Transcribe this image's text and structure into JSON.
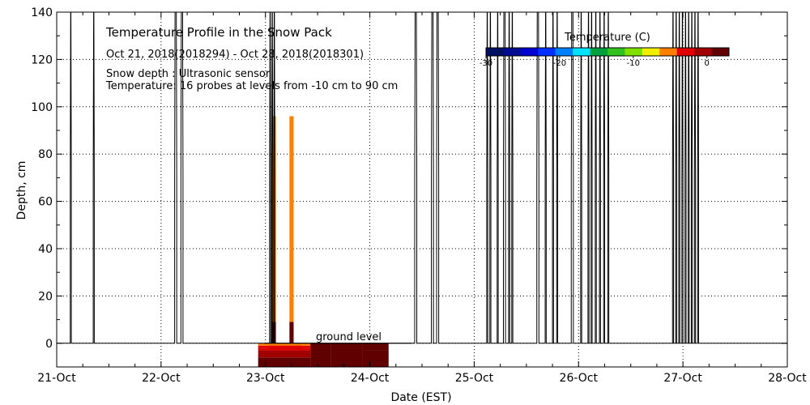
{
  "chart_data": {
    "type": "heatmap",
    "title": "Temperature Profile in the Snow Pack",
    "subtitle": "Oct 21, 2018(2018294) - Oct 28, 2018(2018301)",
    "notes": [
      "Snow depth : Ultrasonic sensor",
      "Temperature: 16 probes at levels from -10 cm to 90 cm"
    ],
    "xlabel": "Date (EST)",
    "ylabel": "Depth, cm",
    "x_range_days": [
      0,
      7
    ],
    "xlim": [
      "21-Oct",
      "28-Oct"
    ],
    "ylim": [
      -10,
      140
    ],
    "x_ticks": [
      {
        "label": "21-Oct",
        "day": 0
      },
      {
        "label": "22-Oct",
        "day": 1
      },
      {
        "label": "23-Oct",
        "day": 2
      },
      {
        "label": "24-Oct",
        "day": 3
      },
      {
        "label": "25-Oct",
        "day": 4
      },
      {
        "label": "26-Oct",
        "day": 5
      },
      {
        "label": "27-Oct",
        "day": 6
      },
      {
        "label": "28-Oct",
        "day": 7
      }
    ],
    "y_ticks": [
      0,
      20,
      40,
      60,
      80,
      100,
      120,
      140
    ],
    "grid": "dotted",
    "annotation": {
      "text": "ground level",
      "y": 0
    },
    "colorbar": {
      "title": "Temperature (C)",
      "range": [
        -30,
        3
      ],
      "ticks": [
        {
          "label": "-30",
          "value": -30
        },
        {
          "label": "-20",
          "value": -20
        },
        {
          "label": "-10",
          "value": -10
        },
        {
          "label": "0",
          "value": 0
        }
      ],
      "colors": [
        "#001060",
        "#000c90",
        "#0000d0",
        "#0030ff",
        "#0080ff",
        "#00e0ff",
        "#00a040",
        "#30c020",
        "#80e000",
        "#f0f000",
        "#ff8000",
        "#e00000",
        "#a00000",
        "#600000"
      ]
    },
    "snow_depth_spikes_days": [
      0.13,
      0.14,
      0.35,
      0.36,
      1.13,
      1.15,
      1.19,
      1.21,
      2.04,
      2.05,
      2.06,
      2.07,
      2.08,
      2.09,
      3.43,
      3.45,
      3.59,
      3.61,
      3.64,
      3.66,
      4.12,
      4.13,
      4.15,
      4.16,
      4.22,
      4.23,
      4.28,
      4.3,
      4.33,
      4.34,
      4.36,
      4.37,
      4.6,
      4.62,
      4.68,
      4.69,
      4.75,
      4.76,
      4.79,
      4.8,
      4.93,
      4.95,
      5.02,
      5.03,
      5.09,
      5.1,
      5.12,
      5.13,
      5.16,
      5.17,
      5.2,
      5.21,
      5.24,
      5.25,
      5.28,
      5.29,
      5.9,
      5.91,
      5.93,
      5.94,
      5.96,
      5.97,
      5.99,
      6.0,
      6.02,
      6.03,
      6.05,
      6.06,
      6.08,
      6.09,
      6.11,
      6.12,
      6.14,
      6.15
    ],
    "spike_top_cm": 140,
    "spike_shoulder_cm": 70,
    "temperature_cells": [
      {
        "x0": 1.93,
        "x1": 2.43,
        "y0": -10,
        "y1": -6,
        "temp": 1.5
      },
      {
        "x0": 1.93,
        "x1": 2.43,
        "y0": -6,
        "y1": -4,
        "temp": 0.5
      },
      {
        "x0": 1.93,
        "x1": 2.43,
        "y0": -4,
        "y1": -3,
        "temp": -0.5
      },
      {
        "x0": 1.93,
        "x1": 2.43,
        "y0": -3,
        "y1": -2,
        "temp": -2
      },
      {
        "x0": 1.93,
        "x1": 2.43,
        "y0": -2,
        "y1": -1,
        "temp": -4
      },
      {
        "x0": 1.93,
        "x1": 2.43,
        "y0": -1,
        "y1": 0,
        "temp": -6
      },
      {
        "x0": 2.03,
        "x1": 2.35,
        "y0": -3,
        "y1": -1,
        "temp": -3
      },
      {
        "x0": 2.43,
        "x1": 2.63,
        "y0": -10,
        "y1": 0,
        "temp": 2.5
      },
      {
        "x0": 2.63,
        "x1": 2.93,
        "y0": -10,
        "y1": 0,
        "temp": 3.0
      },
      {
        "x0": 2.93,
        "x1": 3.18,
        "y0": -10,
        "y1": -3,
        "temp": 1.5
      },
      {
        "x0": 2.93,
        "x1": 3.18,
        "y0": -3,
        "y1": 0,
        "temp": 2.5
      },
      {
        "x0": 2.06,
        "x1": 2.1,
        "y0": 0,
        "y1": 9,
        "temp": 2.5
      },
      {
        "x0": 2.06,
        "x1": 2.1,
        "y0": 9,
        "y1": 96,
        "temp": -6
      },
      {
        "x0": 2.23,
        "x1": 2.27,
        "y0": 0,
        "y1": 9,
        "temp": 2.5
      },
      {
        "x0": 2.23,
        "x1": 2.27,
        "y0": 9,
        "y1": 96,
        "temp": -6
      }
    ]
  }
}
